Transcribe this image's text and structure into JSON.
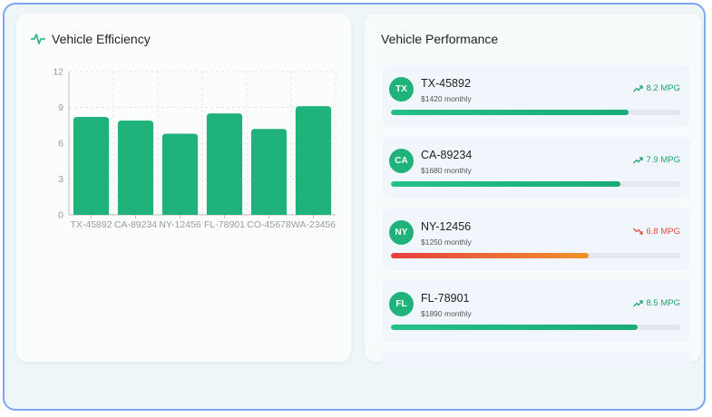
{
  "efficiency_panel": {
    "title": "Vehicle Efficiency",
    "icon": "pulse-icon",
    "accent": "#1fb27a"
  },
  "chart_data": {
    "type": "bar",
    "categories": [
      "TX-45892",
      "CA-89234",
      "NY-12456",
      "FL-78901",
      "CO-45678",
      "WA-23456"
    ],
    "values": [
      8.2,
      7.9,
      6.8,
      8.5,
      7.2,
      9.1
    ],
    "ylim": [
      0,
      12
    ],
    "yticks": [
      "0",
      "3",
      "6",
      "9",
      "12"
    ],
    "grid": true,
    "bar_color": "#1fb27a"
  },
  "performance_panel": {
    "title": "Vehicle Performance",
    "vehicles": [
      {
        "initials": "TX",
        "plate": "TX-45892",
        "monthly": "$1420 monthly",
        "mpg": "8.2 MPG",
        "trend": "up",
        "trend_icon": "trend-up-icon",
        "progress": 0.82
      },
      {
        "initials": "CA",
        "plate": "CA-89234",
        "monthly": "$1680 monthly",
        "mpg": "7.9 MPG",
        "trend": "up",
        "trend_icon": "trend-up-icon",
        "progress": 0.79
      },
      {
        "initials": "NY",
        "plate": "NY-12456",
        "monthly": "$1250 monthly",
        "mpg": "6.8 MPG",
        "trend": "down",
        "trend_icon": "trend-down-icon",
        "progress": 0.68
      },
      {
        "initials": "FL",
        "plate": "FL-78901",
        "monthly": "$1890 monthly",
        "mpg": "8.5 MPG",
        "trend": "up",
        "trend_icon": "trend-up-icon",
        "progress": 0.85
      }
    ]
  }
}
